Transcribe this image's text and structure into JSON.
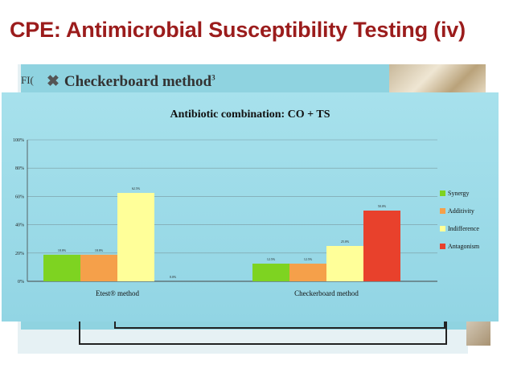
{
  "slide": {
    "title": "CPE: Antimicrobial Susceptibility Testing (iv)"
  },
  "background_doc": {
    "fig_label": "FI(",
    "heading": "Checkerboard method",
    "heading_sup": "3",
    "bullet_icon": "x-bullet-icon"
  },
  "colors": {
    "title": "#9b1c1c",
    "panel": "#9fdde9",
    "synergy": "#7ed321",
    "additivity": "#f5a04a",
    "indifference": "#ffff99",
    "antagonism": "#e8412c"
  },
  "chart_data": {
    "type": "bar",
    "title": "Antibiotic combination: CO + TS",
    "categories": [
      "Etest® method",
      "Checkerboard method"
    ],
    "series": [
      {
        "name": "Synergy",
        "values": [
          18.8,
          12.5
        ],
        "labels": [
          "18.8%",
          "12.5%"
        ],
        "color": "#7ed321"
      },
      {
        "name": "Additivity",
        "values": [
          18.8,
          12.5
        ],
        "labels": [
          "18.8%",
          "12.5%"
        ],
        "color": "#f5a04a"
      },
      {
        "name": "Indifference",
        "values": [
          62.5,
          25.0
        ],
        "labels": [
          "62.5%",
          "25.0%"
        ],
        "color": "#ffff99"
      },
      {
        "name": "Antagonism",
        "values": [
          0,
          50.0
        ],
        "labels": [
          "0.0%",
          "50.0%"
        ],
        "color": "#e8412c"
      }
    ],
    "yticks": [
      "0%",
      "20%",
      "40%",
      "60%",
      "80%",
      "100%"
    ],
    "ylim": [
      0,
      100
    ],
    "grid": true,
    "legend_position": "right"
  }
}
